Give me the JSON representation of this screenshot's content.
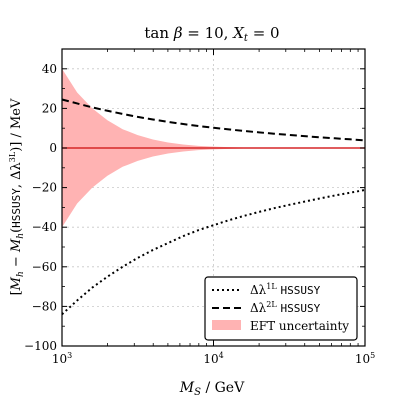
{
  "chart_data": {
    "type": "line",
    "title": "tan β = 10, X_t = 0",
    "xlabel": "M_S / GeV",
    "ylabel": "[M_h − M_h(HSSUSY, Δλ^{3L})] / MeV",
    "x_scale": "log",
    "xlim": [
      1000,
      100000
    ],
    "ylim": [
      -100,
      50
    ],
    "grid": true,
    "legend_position": "bottom-right",
    "xticks": [
      {
        "value": 1000,
        "label": "10^3"
      },
      {
        "value": 10000,
        "label": "10^4"
      },
      {
        "value": 100000,
        "label": "10^5"
      }
    ],
    "yticks": [
      -100,
      -80,
      -60,
      -40,
      -20,
      0,
      20,
      40
    ],
    "x": [
      1000,
      1259,
      1585,
      1995,
      2512,
      3162,
      3981,
      5012,
      6310,
      7943,
      10000,
      12589,
      15849,
      19953,
      25119,
      31623,
      39811,
      50119,
      63096,
      79433,
      100000
    ],
    "series": [
      {
        "name": "Δλ^{1L} HSSUSY",
        "style": "dotted",
        "color": "#000000",
        "values": [
          -84,
          -77,
          -70.5,
          -65,
          -60,
          -55.5,
          -51.5,
          -48,
          -44.5,
          -41.5,
          -39,
          -36.5,
          -34.3,
          -32.3,
          -30.4,
          -28.7,
          -27.1,
          -25.5,
          -24,
          -22.6,
          -21.2
        ]
      },
      {
        "name": "Δλ^{2L} HSSUSY",
        "style": "dashed",
        "color": "#000000",
        "values": [
          24.5,
          22.5,
          20.5,
          18.8,
          17.2,
          15.7,
          14.4,
          13.2,
          12.1,
          11.1,
          10.2,
          9.4,
          8.6,
          7.9,
          7.2,
          6.6,
          6.0,
          5.4,
          4.9,
          4.4,
          3.8
        ]
      },
      {
        "name": "EFT uncertainty",
        "style": "band",
        "color": "#ffb3b3",
        "values": [
          40,
          28,
          20,
          14,
          9.5,
          6.5,
          4.3,
          2.8,
          1.8,
          1.1,
          0.7,
          0.45,
          0.28,
          0.18,
          0.11,
          0.07,
          0.045,
          0.03,
          0.02,
          0.012,
          0.008
        ]
      }
    ],
    "zero_line_color": "#d62728"
  },
  "legend": {
    "l1_label": "Δλ",
    "l1_sup": "1L",
    "l1_tag": "HSSUSY",
    "l2_label": "Δλ",
    "l2_sup": "2L",
    "l2_tag": "HSSUSY",
    "l3_label": "EFT uncertainty"
  }
}
